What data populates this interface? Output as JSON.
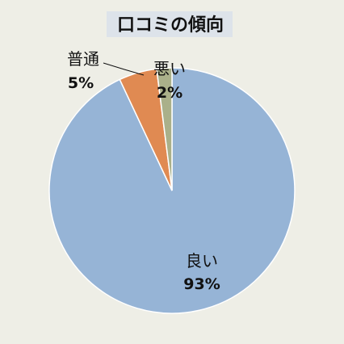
{
  "chart_data": {
    "type": "pie",
    "title": "口コミの傾向",
    "slices": [
      {
        "label": "良い",
        "value": 93,
        "value_label": "93%",
        "color": "#96b4d6"
      },
      {
        "label": "普通",
        "value": 5,
        "value_label": "5%",
        "color": "#e08a52"
      },
      {
        "label": "悪い",
        "value": 2,
        "value_label": "2%",
        "color": "#aab08a"
      }
    ],
    "start_angle": "12 o'clock",
    "direction": "clockwise",
    "legend": "none"
  }
}
